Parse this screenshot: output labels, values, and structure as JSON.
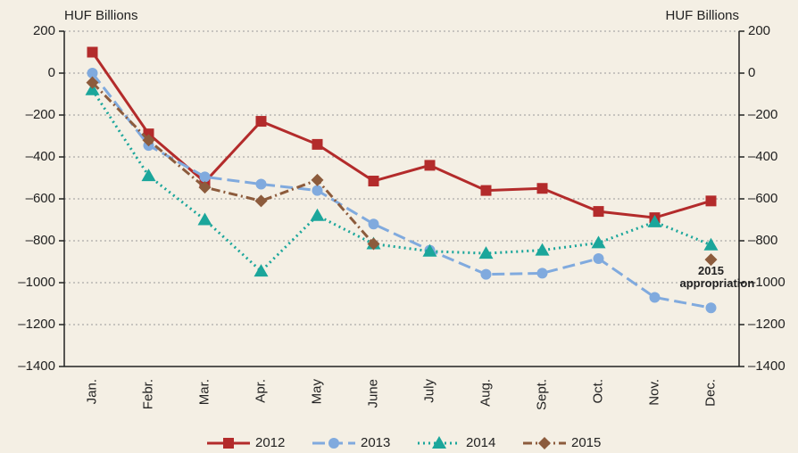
{
  "chart_data": {
    "type": "line",
    "y_label": "HUF Billions",
    "y2_label": "HUF Billions",
    "categories": [
      "Jan.",
      "Febr.",
      "Mar.",
      "Apr.",
      "May",
      "June",
      "July",
      "Aug.",
      "Sept.",
      "Oct.",
      "Nov.",
      "Dec."
    ],
    "series": [
      {
        "name": "2012",
        "color": "#b32b2b",
        "line_style": "solid",
        "marker": "square",
        "values": [
          100,
          -290,
          -520,
          -230,
          -340,
          -515,
          -440,
          -560,
          -550,
          -660,
          -690,
          -610
        ]
      },
      {
        "name": "2013",
        "color": "#80aade",
        "line_style": "dashed",
        "marker": "circle",
        "values": [
          0,
          -345,
          -495,
          -530,
          -560,
          -720,
          -845,
          -960,
          -955,
          -885,
          -1070,
          -1120
        ]
      },
      {
        "name": "2014",
        "color": "#1ba69b",
        "line_style": "dotted",
        "marker": "triangle",
        "values": [
          -80,
          -490,
          -700,
          -945,
          -680,
          -815,
          -850,
          -860,
          -845,
          -810,
          -710,
          -820
        ]
      },
      {
        "name": "2015",
        "color": "#8c5b3c",
        "line_style": "dashdot",
        "marker": "diamond",
        "values": [
          -45,
          -320,
          -545,
          -610,
          -510,
          -815,
          null,
          null,
          null,
          null,
          null,
          -890
        ]
      }
    ],
    "annotation": "2015 appropriation",
    "ylim": [
      -1400,
      200
    ],
    "yticks": [
      200,
      0,
      {
        "value": -200,
        "label": "–200"
      },
      {
        "value": -400,
        "label": "–400"
      },
      {
        "value": -600,
        "label": "–600"
      },
      {
        "value": -800,
        "label": "–800"
      },
      {
        "value": -1000,
        "label": "–1000"
      },
      {
        "value": -1200,
        "label": "–1200"
      },
      {
        "value": -1400,
        "label": "–1400"
      }
    ],
    "y2lim": [
      -1400,
      200
    ],
    "y2ticks": [
      200,
      0,
      {
        "value": -200,
        "label": "–200"
      },
      {
        "value": -400,
        "label": "–400"
      },
      {
        "value": -600,
        "label": "–600"
      },
      {
        "value": -800,
        "label": "–800"
      },
      {
        "value": -1000,
        "label": "–1000"
      },
      {
        "value": -1200,
        "label": "–1200"
      },
      {
        "value": -1400,
        "label": "–1400"
      }
    ],
    "grid": true,
    "legend": "bottom"
  }
}
